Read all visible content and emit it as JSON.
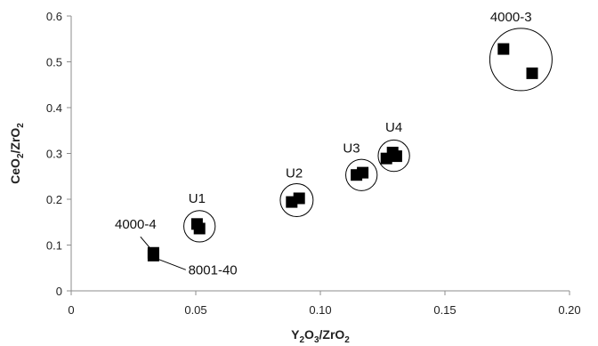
{
  "chart_data": {
    "type": "scatter",
    "xlabel": {
      "parts": [
        [
          "Y",
          ""
        ],
        [
          "2",
          "sub"
        ],
        [
          "O",
          ""
        ],
        [
          "3",
          "sub"
        ],
        [
          "/ZrO",
          ""
        ],
        [
          "2",
          "sub"
        ]
      ]
    },
    "ylabel": {
      "parts": [
        [
          "CeO",
          ""
        ],
        [
          "2",
          "sub"
        ],
        [
          "/ZrO",
          ""
        ],
        [
          "2",
          "sub"
        ]
      ]
    },
    "xlim": [
      0,
      0.2
    ],
    "ylim": [
      0,
      0.6
    ],
    "x_ticks": [
      0,
      0.05,
      0.1,
      0.15,
      0.2
    ],
    "x_tick_labels": [
      "0",
      "0.05",
      "0.10",
      "0.15",
      "0.20"
    ],
    "y_ticks": [
      0,
      0.1,
      0.2,
      0.3,
      0.4,
      0.5,
      0.6
    ],
    "y_tick_labels": [
      "0",
      "0.1",
      "0.2",
      "0.3",
      "0.4",
      "0.5",
      "0.6"
    ],
    "grid": false,
    "legend": "none",
    "marker": "square",
    "marker_color": "#000000",
    "points": [
      {
        "x": 0.033,
        "y": 0.083
      },
      {
        "x": 0.033,
        "y": 0.077
      },
      {
        "x": 0.0505,
        "y": 0.146
      },
      {
        "x": 0.0515,
        "y": 0.136
      },
      {
        "x": 0.0885,
        "y": 0.194
      },
      {
        "x": 0.0915,
        "y": 0.202
      },
      {
        "x": 0.1145,
        "y": 0.253
      },
      {
        "x": 0.117,
        "y": 0.258
      },
      {
        "x": 0.1265,
        "y": 0.289
      },
      {
        "x": 0.129,
        "y": 0.302
      },
      {
        "x": 0.1305,
        "y": 0.294
      },
      {
        "x": 0.1735,
        "y": 0.528
      },
      {
        "x": 0.185,
        "y": 0.475
      }
    ],
    "clusters": [
      {
        "label": "U1",
        "cx": 0.0515,
        "cy": 0.141,
        "rx": 0.0063,
        "label_x": 0.0505,
        "label_y": 0.192
      },
      {
        "label": "U2",
        "cx": 0.0905,
        "cy": 0.198,
        "rx": 0.0066,
        "label_x": 0.0895,
        "label_y": 0.248
      },
      {
        "label": "U3",
        "cx": 0.1165,
        "cy": 0.253,
        "rx": 0.0063,
        "label_x": 0.1125,
        "label_y": 0.302
      },
      {
        "label": "U4",
        "cx": 0.1295,
        "cy": 0.295,
        "rx": 0.0063,
        "label_x": 0.1295,
        "label_y": 0.348
      },
      {
        "label": "4000-3",
        "cx": 0.1805,
        "cy": 0.505,
        "rx": 0.0125,
        "label_x": 0.1765,
        "label_y": 0.588
      }
    ],
    "annotations": [
      {
        "text": "4000-4",
        "x": 0.0175,
        "y": 0.136
      },
      {
        "text": "8001-40",
        "x": 0.047,
        "y": 0.036
      }
    ]
  }
}
